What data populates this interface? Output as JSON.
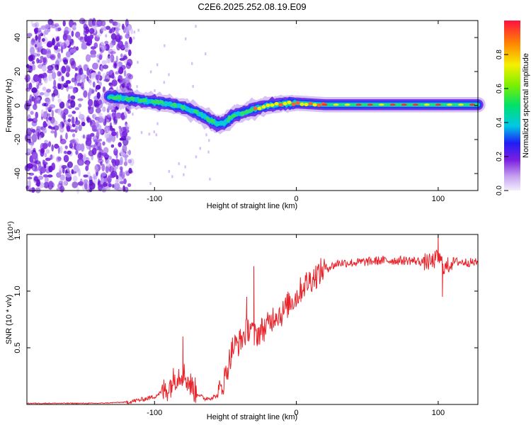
{
  "title": "C2E6.2025.252.08.19.E09",
  "chart_data": [
    {
      "type": "heatmap",
      "title": "C2E6.2025.252.08.19.E09",
      "xlabel": "Height of straight line (km)",
      "ylabel": "Frequency (Hz)",
      "xlim": [
        -190,
        128
      ],
      "ylim": [
        -50,
        50
      ],
      "xticks": [
        -100,
        0,
        100
      ],
      "yticks": [
        -40,
        -20,
        0,
        20,
        40
      ],
      "colorbar": {
        "label": "Normalized spectral amplitude",
        "range": [
          0,
          1
        ],
        "ticks": [
          "0.0",
          "0.2",
          "0.4",
          "0.6",
          "0.8"
        ]
      },
      "ridge": {
        "x": [
          -130,
          -120,
          -110,
          -100,
          -90,
          -80,
          -70,
          -60,
          -55,
          -50,
          -45,
          -40,
          -30,
          -20,
          -10,
          0,
          10,
          20,
          40,
          60,
          80,
          100,
          128
        ],
        "freq": [
          5,
          4,
          3,
          2,
          1,
          -1,
          -4,
          -9,
          -11,
          -10,
          -6,
          -5,
          -2,
          0,
          1,
          1.5,
          1,
          0.5,
          0.5,
          0.5,
          0.5,
          0.5,
          0.5
        ]
      },
      "noise_region_x": [
        -190,
        -120
      ]
    },
    {
      "type": "line",
      "title": "",
      "xlabel": "Height of straight line (km)",
      "ylabel": "SNR (10 * v/v)",
      "yscale_label": "(x10⁴)",
      "xlim": [
        -190,
        128
      ],
      "ylim": [
        0,
        1.5
      ],
      "xticks": [
        -100,
        0,
        100
      ],
      "yticks": [
        0.5,
        1.0,
        1.5
      ],
      "series": [
        {
          "name": "SNR",
          "color": "#e8232a",
          "x": [
            -190,
            -140,
            -120,
            -110,
            -100,
            -90,
            -85,
            -80,
            -75,
            -70,
            -65,
            -60,
            -55,
            -50,
            -45,
            -40,
            -35,
            -32,
            -30,
            -25,
            -20,
            -15,
            -10,
            -5,
            0,
            5,
            10,
            15,
            20,
            25,
            30,
            40,
            60,
            80,
            90,
            95,
            100,
            105,
            110,
            128
          ],
          "values": [
            0.01,
            0.01,
            0.02,
            0.04,
            0.07,
            0.15,
            0.25,
            0.28,
            0.18,
            0.1,
            0.05,
            0.06,
            0.08,
            0.25,
            0.5,
            0.55,
            0.65,
            0.7,
            0.6,
            0.65,
            0.7,
            0.8,
            0.8,
            0.9,
            0.95,
            1.05,
            1.1,
            1.15,
            1.2,
            1.22,
            1.25,
            1.25,
            1.27,
            1.27,
            1.26,
            1.25,
            1.3,
            1.2,
            1.26,
            1.25
          ]
        }
      ],
      "spikes": [
        [
          -80,
          0.6
        ],
        [
          -30,
          1.22
        ],
        [
          -35,
          0.95
        ],
        [
          100,
          1.5
        ],
        [
          103,
          0.95
        ]
      ]
    }
  ]
}
